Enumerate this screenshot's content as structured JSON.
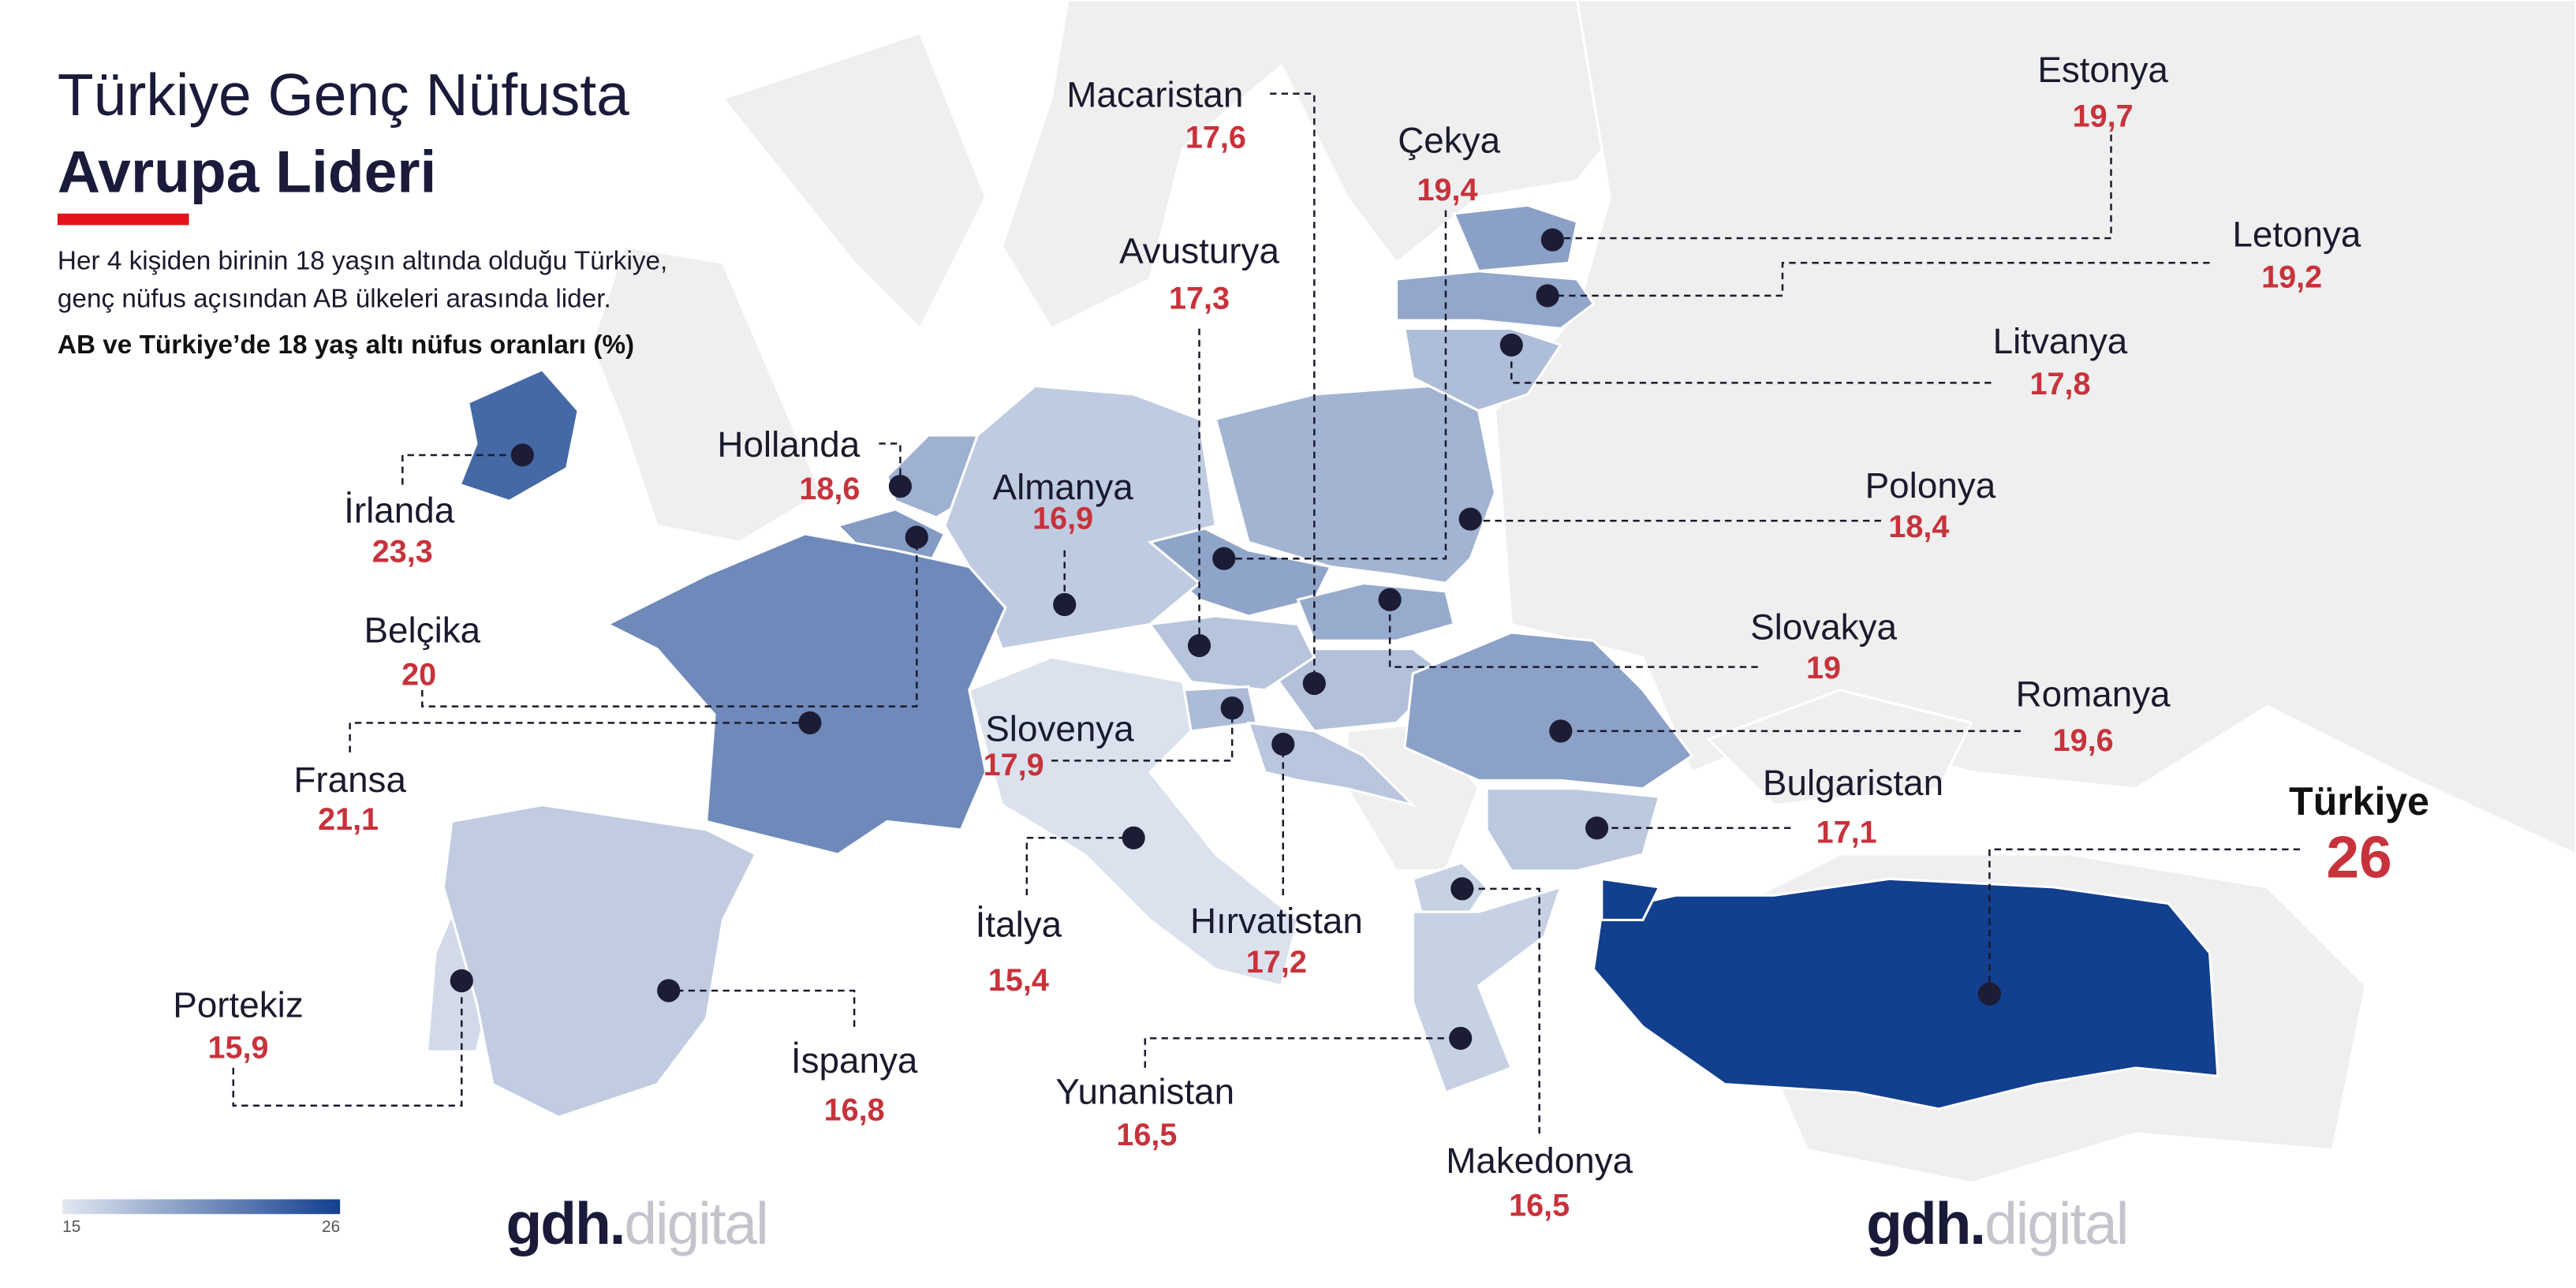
{
  "header": {
    "title_line1": "Türkiye Genç Nüfusta",
    "title_line2": "Avrupa Lideri",
    "description_line1": "Her 4 kişiden birinin 18 yaşın altında olduğu Türkiye,",
    "description_line2": "genç nüfus açısından AB ülkeleri arasında lider.",
    "subtitle": "AB ve Türkiye’de 18 yaş altı nüfus oranları (%)"
  },
  "countries": [
    {
      "name": "Macaristan",
      "value": 17.6,
      "value_label": "17,6"
    },
    {
      "name": "Çekya",
      "value": 19.4,
      "value_label": "19,4"
    },
    {
      "name": "Estonya",
      "value": 19.7,
      "value_label": "19,7"
    },
    {
      "name": "Letonya",
      "value": 19.2,
      "value_label": "19,2"
    },
    {
      "name": "Litvanya",
      "value": 17.8,
      "value_label": "17,8"
    },
    {
      "name": "Polonya",
      "value": 18.4,
      "value_label": "18,4"
    },
    {
      "name": "Slovakya",
      "value": 19,
      "value_label": "19"
    },
    {
      "name": "Romanya",
      "value": 19.6,
      "value_label": "19,6"
    },
    {
      "name": "Bulgaristan",
      "value": 17.1,
      "value_label": "17,1"
    },
    {
      "name": "Türkiye",
      "value": 26,
      "value_label": "26"
    },
    {
      "name": "Avusturya",
      "value": 17.3,
      "value_label": "17,3"
    },
    {
      "name": "Hollanda",
      "value": 18.6,
      "value_label": "18,6"
    },
    {
      "name": "Almanya",
      "value": 16.9,
      "value_label": "16,9"
    },
    {
      "name": "İrlanda",
      "value": 23.3,
      "value_label": "23,3"
    },
    {
      "name": "Belçika",
      "value": 20,
      "value_label": "20"
    },
    {
      "name": "Fransa",
      "value": 21.1,
      "value_label": "21,1"
    },
    {
      "name": "Slovenya",
      "value": 17.9,
      "value_label": "17,9"
    },
    {
      "name": "İtalya",
      "value": 15.4,
      "value_label": "15,4"
    },
    {
      "name": "Hırvatistan",
      "value": 17.2,
      "value_label": "17,2"
    },
    {
      "name": "Portekiz",
      "value": 15.9,
      "value_label": "15,9"
    },
    {
      "name": "İspanya",
      "value": 16.8,
      "value_label": "16,8"
    },
    {
      "name": "Yunanistan",
      "value": 16.5,
      "value_label": "16,5"
    },
    {
      "name": "Makedonya",
      "value": 16.5,
      "value_label": "16,5"
    }
  ],
  "legend": {
    "min": 15,
    "max": 26,
    "color_min": "#e3e8f1",
    "color_max": "#123f8e"
  },
  "brand": {
    "mark": "gdh.",
    "word": "digital"
  }
}
